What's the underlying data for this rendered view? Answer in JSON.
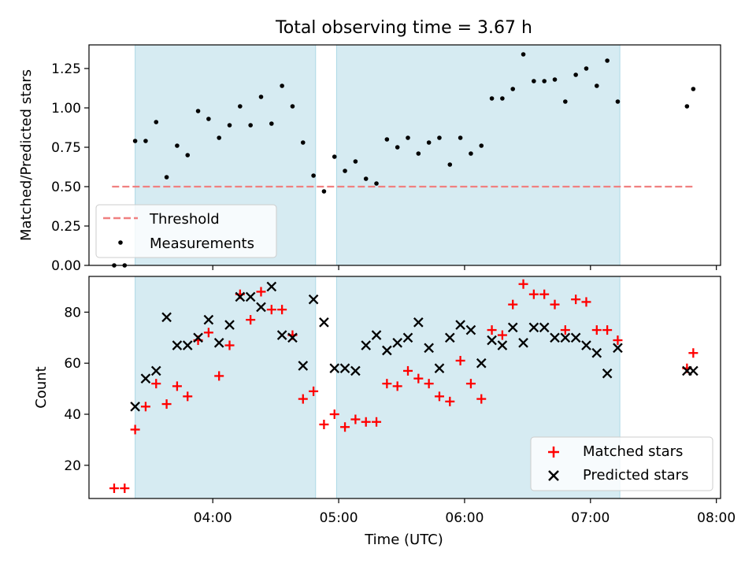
{
  "title": "Total observing time = 3.67 h",
  "colors": {
    "shade": "#add8e6",
    "threshold": "#f08080",
    "measurement": "#000000",
    "matched": "#ff0000",
    "predicted": "#000000"
  },
  "chart_data": [
    {
      "type": "scatter",
      "title": "Total observing time = 3.67 h",
      "ylabel": "Matched/Predicted stars",
      "xlabel": "",
      "xlim": [
        "03:01",
        "08:02"
      ],
      "ylim": [
        0,
        1.4
      ],
      "yticks": [
        "0.00",
        "0.25",
        "0.50",
        "0.75",
        "1.00",
        "1.25"
      ],
      "ytick_values": [
        0,
        0.25,
        0.5,
        0.75,
        1.0,
        1.25
      ],
      "shaded_intervals": [
        [
          "03:23",
          "04:49"
        ],
        [
          "04:59",
          "07:14"
        ]
      ],
      "threshold": {
        "label": "Threshold",
        "value": 0.5,
        "x_range": [
          "03:12",
          "07:50"
        ]
      },
      "legend": {
        "position": "lower-left",
        "entries": [
          "Threshold",
          "Measurements"
        ]
      },
      "series": [
        {
          "name": "Measurements",
          "x": [
            "03:13",
            "03:18",
            "03:23",
            "03:28",
            "03:33",
            "03:38",
            "03:43",
            "03:48",
            "03:53",
            "03:58",
            "04:03",
            "04:08",
            "04:13",
            "04:18",
            "04:23",
            "04:28",
            "04:33",
            "04:38",
            "04:43",
            "04:48",
            "04:53",
            "04:58",
            "05:03",
            "05:08",
            "05:13",
            "05:18",
            "05:23",
            "05:28",
            "05:33",
            "05:38",
            "05:43",
            "05:48",
            "05:53",
            "05:58",
            "06:03",
            "06:08",
            "06:13",
            "06:18",
            "06:23",
            "06:28",
            "06:33",
            "06:38",
            "06:43",
            "06:48",
            "06:53",
            "06:58",
            "07:03",
            "07:08",
            "07:13",
            "07:46",
            "07:49"
          ],
          "y": [
            0.0,
            0.0,
            0.79,
            0.79,
            0.91,
            0.56,
            0.76,
            0.7,
            0.98,
            0.93,
            0.81,
            0.89,
            1.01,
            0.89,
            1.07,
            0.9,
            1.14,
            1.01,
            0.78,
            0.57,
            0.47,
            0.69,
            0.6,
            0.66,
            0.55,
            0.52,
            0.8,
            0.75,
            0.81,
            0.71,
            0.78,
            0.81,
            0.64,
            0.81,
            0.71,
            0.76,
            1.06,
            1.06,
            1.12,
            1.34,
            1.17,
            1.17,
            1.18,
            1.04,
            1.21,
            1.25,
            1.14,
            1.3,
            1.04,
            1.01,
            1.12
          ]
        }
      ]
    },
    {
      "type": "scatter",
      "title": "",
      "xlabel": "Time (UTC)",
      "ylabel": "Count",
      "xlim": [
        "03:01",
        "08:02"
      ],
      "ylim": [
        7,
        94
      ],
      "yticks": [
        "20",
        "40",
        "60",
        "80"
      ],
      "ytick_values": [
        20,
        40,
        60,
        80
      ],
      "xticks": [
        "04:00",
        "05:00",
        "06:00",
        "07:00",
        "08:00"
      ],
      "xtick_values": [
        "04:00",
        "05:00",
        "06:00",
        "07:00",
        "08:00"
      ],
      "shaded_intervals": [
        [
          "03:23",
          "04:49"
        ],
        [
          "04:59",
          "07:14"
        ]
      ],
      "legend": {
        "position": "lower-right",
        "entries": [
          "Matched stars",
          "Predicted stars"
        ]
      },
      "series": [
        {
          "name": "Matched stars",
          "marker": "+",
          "x": [
            "03:13",
            "03:18",
            "03:23",
            "03:28",
            "03:33",
            "03:38",
            "03:43",
            "03:48",
            "03:53",
            "03:58",
            "04:03",
            "04:08",
            "04:13",
            "04:18",
            "04:23",
            "04:28",
            "04:33",
            "04:38",
            "04:43",
            "04:48",
            "04:53",
            "04:58",
            "05:03",
            "05:08",
            "05:13",
            "05:18",
            "05:23",
            "05:28",
            "05:33",
            "05:38",
            "05:43",
            "05:48",
            "05:53",
            "05:58",
            "06:03",
            "06:08",
            "06:13",
            "06:18",
            "06:23",
            "06:28",
            "06:33",
            "06:38",
            "06:43",
            "06:48",
            "06:53",
            "06:58",
            "07:03",
            "07:08",
            "07:13",
            "07:46",
            "07:49"
          ],
          "y": [
            11,
            11,
            34,
            43,
            52,
            44,
            51,
            47,
            69,
            72,
            55,
            67,
            87,
            77,
            88,
            81,
            81,
            71,
            46,
            49,
            36,
            40,
            35,
            38,
            37,
            37,
            52,
            51,
            57,
            54,
            52,
            47,
            45,
            61,
            52,
            46,
            73,
            71,
            83,
            91,
            87,
            87,
            83,
            73,
            85,
            84,
            73,
            73,
            69,
            58,
            64
          ]
        },
        {
          "name": "Predicted stars",
          "marker": "x",
          "x": [
            "03:23",
            "03:28",
            "03:33",
            "03:38",
            "03:43",
            "03:48",
            "03:53",
            "03:58",
            "04:03",
            "04:08",
            "04:13",
            "04:18",
            "04:23",
            "04:28",
            "04:33",
            "04:38",
            "04:43",
            "04:48",
            "04:53",
            "04:58",
            "05:03",
            "05:08",
            "05:13",
            "05:18",
            "05:23",
            "05:28",
            "05:33",
            "05:38",
            "05:43",
            "05:48",
            "05:53",
            "05:58",
            "06:03",
            "06:08",
            "06:13",
            "06:18",
            "06:23",
            "06:28",
            "06:33",
            "06:38",
            "06:43",
            "06:48",
            "06:53",
            "06:58",
            "07:03",
            "07:08",
            "07:13",
            "07:46",
            "07:49"
          ],
          "y": [
            43,
            54,
            57,
            78,
            67,
            67,
            70,
            77,
            68,
            75,
            86,
            86,
            82,
            90,
            71,
            70,
            59,
            85,
            76,
            58,
            58,
            57,
            67,
            71,
            65,
            68,
            70,
            76,
            66,
            58,
            70,
            75,
            73,
            60,
            69,
            67,
            74,
            68,
            74,
            74,
            70,
            70,
            70,
            67,
            64,
            56,
            66,
            57,
            57
          ]
        }
      ]
    }
  ]
}
